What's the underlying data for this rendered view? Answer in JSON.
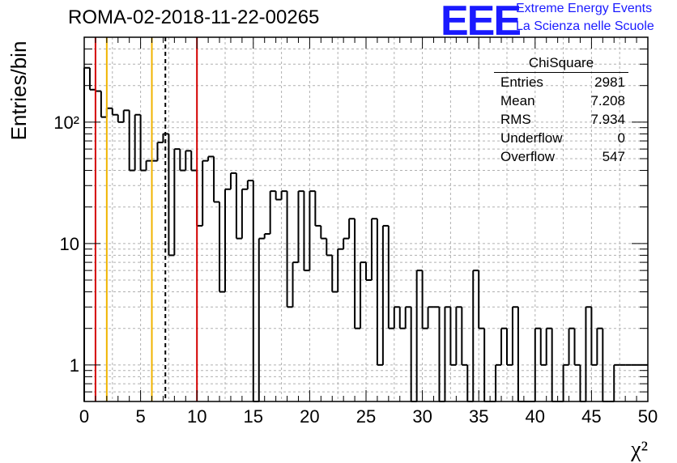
{
  "chart_data": {
    "type": "bar",
    "histogram": true,
    "title": "ROMA-02-2018-11-22-00265",
    "ylabel": "Entries/bin",
    "xlabel": "χ²",
    "xlim": [
      0,
      50
    ],
    "ylim": [
      0.5,
      500
    ],
    "yscale": "log",
    "grid": true,
    "bin_width": 0.5,
    "x_tick_labels": [
      "0",
      "5",
      "10",
      "15",
      "20",
      "25",
      "30",
      "35",
      "40",
      "45",
      "50"
    ],
    "y_tick_labels": [
      "1",
      "10",
      "10²"
    ],
    "bins": [
      {
        "x": 0.0,
        "y": 280
      },
      {
        "x": 0.5,
        "y": 185
      },
      {
        "x": 1.0,
        "y": 180
      },
      {
        "x": 1.5,
        "y": 110
      },
      {
        "x": 2.0,
        "y": 130
      },
      {
        "x": 2.5,
        "y": 115
      },
      {
        "x": 3.0,
        "y": 100
      },
      {
        "x": 3.5,
        "y": 125
      },
      {
        "x": 4.0,
        "y": 40
      },
      {
        "x": 4.5,
        "y": 115
      },
      {
        "x": 5.0,
        "y": 40
      },
      {
        "x": 5.5,
        "y": 48
      },
      {
        "x": 6.0,
        "y": 48
      },
      {
        "x": 6.5,
        "y": 68
      },
      {
        "x": 7.0,
        "y": 80
      },
      {
        "x": 7.5,
        "y": 8
      },
      {
        "x": 8.0,
        "y": 60
      },
      {
        "x": 8.5,
        "y": 40
      },
      {
        "x": 9.0,
        "y": 58
      },
      {
        "x": 9.5,
        "y": 40
      },
      {
        "x": 10.0,
        "y": 14
      },
      {
        "x": 10.5,
        "y": 48
      },
      {
        "x": 11.0,
        "y": 52
      },
      {
        "x": 11.5,
        "y": 22
      },
      {
        "x": 12.0,
        "y": 4
      },
      {
        "x": 12.5,
        "y": 28
      },
      {
        "x": 13.0,
        "y": 38
      },
      {
        "x": 13.5,
        "y": 11
      },
      {
        "x": 14.0,
        "y": 28
      },
      {
        "x": 14.5,
        "y": 33
      },
      {
        "x": 15.0,
        "y": 0
      },
      {
        "x": 15.5,
        "y": 11
      },
      {
        "x": 16.0,
        "y": 12
      },
      {
        "x": 16.5,
        "y": 27
      },
      {
        "x": 17.0,
        "y": 23
      },
      {
        "x": 17.5,
        "y": 27
      },
      {
        "x": 18.0,
        "y": 3
      },
      {
        "x": 18.5,
        "y": 7
      },
      {
        "x": 19.0,
        "y": 27
      },
      {
        "x": 19.5,
        "y": 6
      },
      {
        "x": 20.0,
        "y": 27
      },
      {
        "x": 20.5,
        "y": 14
      },
      {
        "x": 21.0,
        "y": 11
      },
      {
        "x": 21.5,
        "y": 8
      },
      {
        "x": 22.0,
        "y": 4
      },
      {
        "x": 22.5,
        "y": 9
      },
      {
        "x": 23.0,
        "y": 11
      },
      {
        "x": 23.5,
        "y": 16
      },
      {
        "x": 24.0,
        "y": 2
      },
      {
        "x": 24.5,
        "y": 7
      },
      {
        "x": 25.0,
        "y": 5
      },
      {
        "x": 25.5,
        "y": 16
      },
      {
        "x": 26.0,
        "y": 1
      },
      {
        "x": 26.5,
        "y": 14
      },
      {
        "x": 27.0,
        "y": 2
      },
      {
        "x": 27.5,
        "y": 3
      },
      {
        "x": 28.0,
        "y": 2
      },
      {
        "x": 28.5,
        "y": 3
      },
      {
        "x": 29.0,
        "y": 0
      },
      {
        "x": 29.5,
        "y": 6
      },
      {
        "x": 30.0,
        "y": 2
      },
      {
        "x": 30.5,
        "y": 3
      },
      {
        "x": 31.0,
        "y": 3
      },
      {
        "x": 31.5,
        "y": 0
      },
      {
        "x": 32.0,
        "y": 3
      },
      {
        "x": 32.5,
        "y": 1
      },
      {
        "x": 33.0,
        "y": 3
      },
      {
        "x": 33.5,
        "y": 1
      },
      {
        "x": 34.0,
        "y": 0
      },
      {
        "x": 34.5,
        "y": 6
      },
      {
        "x": 35.0,
        "y": 2
      },
      {
        "x": 35.5,
        "y": 0
      },
      {
        "x": 36.0,
        "y": 0
      },
      {
        "x": 36.5,
        "y": 1
      },
      {
        "x": 37.0,
        "y": 2
      },
      {
        "x": 37.5,
        "y": 1
      },
      {
        "x": 38.0,
        "y": 3
      },
      {
        "x": 38.5,
        "y": 0
      },
      {
        "x": 39.0,
        "y": 0
      },
      {
        "x": 39.5,
        "y": 0
      },
      {
        "x": 40.0,
        "y": 2
      },
      {
        "x": 40.5,
        "y": 1
      },
      {
        "x": 41.0,
        "y": 2
      },
      {
        "x": 41.5,
        "y": 0
      },
      {
        "x": 42.0,
        "y": 0
      },
      {
        "x": 42.5,
        "y": 1
      },
      {
        "x": 43.0,
        "y": 2
      },
      {
        "x": 43.5,
        "y": 1
      },
      {
        "x": 44.0,
        "y": 0
      },
      {
        "x": 44.5,
        "y": 3
      },
      {
        "x": 45.0,
        "y": 1
      },
      {
        "x": 45.5,
        "y": 2
      },
      {
        "x": 46.0,
        "y": 0
      },
      {
        "x": 46.5,
        "y": 0
      },
      {
        "x": 47.0,
        "y": 1
      },
      {
        "x": 47.5,
        "y": 1
      },
      {
        "x": 48.0,
        "y": 1
      },
      {
        "x": 48.5,
        "y": 1
      },
      {
        "x": 49.0,
        "y": 1
      },
      {
        "x": 49.5,
        "y": 1
      }
    ],
    "vertical_lines": [
      {
        "x": 1.0,
        "color": "#d40000",
        "style": "solid"
      },
      {
        "x": 2.0,
        "color": "#f0b400",
        "style": "solid"
      },
      {
        "x": 6.0,
        "color": "#f0b400",
        "style": "solid"
      },
      {
        "x": 7.2,
        "color": "#000000",
        "style": "dashed"
      },
      {
        "x": 10.0,
        "color": "#d40000",
        "style": "solid"
      }
    ],
    "stats_box": {
      "title": "ChiSquare",
      "rows": [
        {
          "label": "Entries",
          "value": "2981"
        },
        {
          "label": "Mean",
          "value": "7.208"
        },
        {
          "label": "RMS",
          "value": "7.934"
        },
        {
          "label": "Underflow",
          "value": "0"
        },
        {
          "label": "Overflow",
          "value": "547"
        }
      ]
    }
  },
  "logo": {
    "text": "EEE",
    "line1": "Extreme Energy Events",
    "line2": "La Scienza nelle Scuole",
    "color": "#1a1aff"
  }
}
